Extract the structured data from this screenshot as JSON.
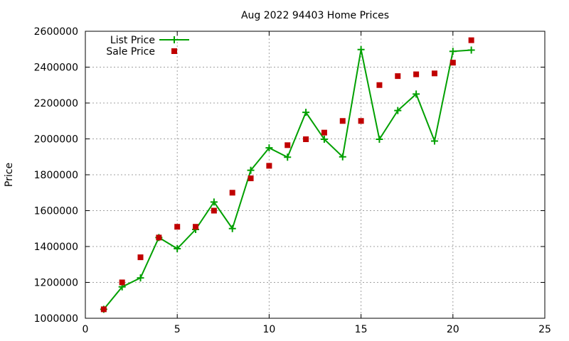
{
  "chart_data": {
    "type": "line",
    "title": "Aug 2022 94403 Home Prices",
    "xlabel": "",
    "ylabel": "Price",
    "xlim": [
      0,
      25
    ],
    "ylim": [
      1000000,
      2600000
    ],
    "x_ticks": [
      0,
      5,
      10,
      15,
      20,
      25
    ],
    "y_ticks": [
      1000000,
      1200000,
      1400000,
      1600000,
      1800000,
      2000000,
      2200000,
      2400000,
      2600000
    ],
    "grid": true,
    "legend_position": "top-left",
    "series": [
      {
        "name": "List Price",
        "style": "linespoints",
        "marker": "plus",
        "color": "#00a000",
        "x": [
          1,
          2,
          3,
          4,
          5,
          6,
          7,
          8,
          9,
          10,
          11,
          12,
          13,
          14,
          15,
          16,
          17,
          18,
          19,
          20,
          21
        ],
        "values": [
          1050000,
          1175000,
          1225000,
          1450000,
          1388000,
          1495000,
          1648000,
          1500000,
          1825000,
          1950000,
          1898000,
          2148000,
          1998000,
          1900000,
          2498000,
          1998000,
          2158000,
          2250000,
          1988000,
          2488000,
          2495000
        ]
      },
      {
        "name": "Sale Price",
        "style": "points",
        "marker": "square",
        "color": "#c00000",
        "x": [
          1,
          2,
          3,
          4,
          5,
          6,
          7,
          8,
          9,
          10,
          11,
          12,
          13,
          14,
          15,
          16,
          17,
          18,
          19,
          20,
          21
        ],
        "values": [
          1050000,
          1200000,
          1340000,
          1450000,
          1510000,
          1510000,
          1600000,
          1700000,
          1780000,
          1850000,
          1965000,
          1998000,
          2035000,
          2100000,
          2100000,
          2300000,
          2350000,
          2360000,
          2365000,
          2425000,
          2550000
        ]
      }
    ]
  }
}
